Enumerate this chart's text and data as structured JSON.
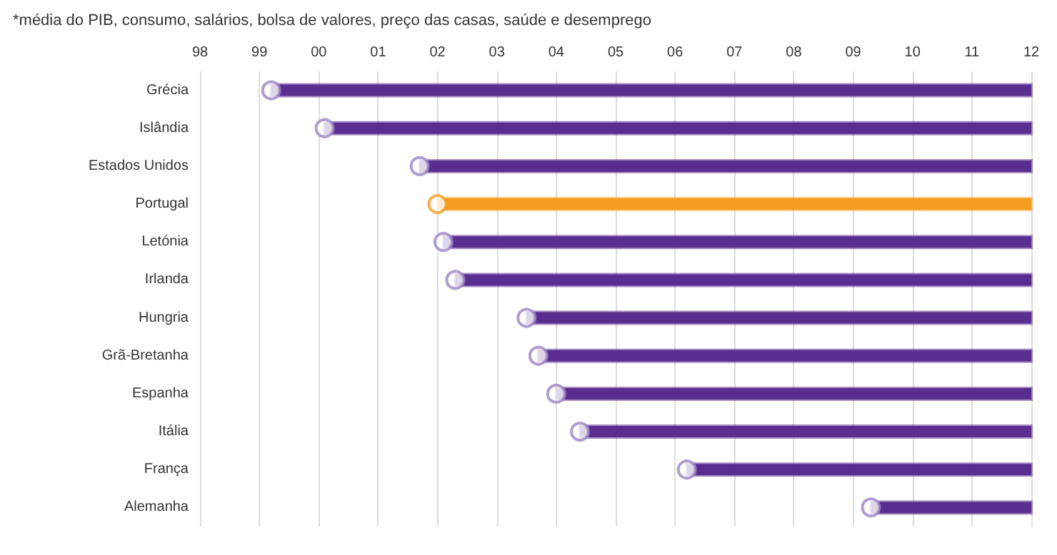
{
  "chart_data": {
    "type": "bar",
    "orientation": "horizontal",
    "subtitle": "*média do PIB, consumo, salários, bolsa de valores, preço das casas, saúde e desemprego",
    "categories": [
      "Grécia",
      "Islândia",
      "Estados Unidos",
      "Portugal",
      "Letónia",
      "Irlanda",
      "Hungria",
      "Grã-Bretanha",
      "Espanha",
      "Itália",
      "França",
      "Alemanha"
    ],
    "series": [
      {
        "base": [
          1999.2,
          2000.1,
          2001.7,
          2002.0,
          2002.1,
          2002.3,
          2003.5,
          2003.7,
          2004.0,
          2004.4,
          2006.2,
          2009.3
        ],
        "values": [
          12.8,
          11.9,
          10.3,
          10.0,
          9.9,
          9.7,
          8.5,
          8.3,
          8.0,
          7.6,
          5.8,
          2.7
        ],
        "colors": [
          "#5b2d91",
          "#5b2d91",
          "#5b2d91",
          "#f39c1f",
          "#5b2d91",
          "#5b2d91",
          "#5b2d91",
          "#5b2d91",
          "#5b2d91",
          "#5b2d91",
          "#5b2d91",
          "#5b2d91"
        ]
      },
      {
        "type": "scatter",
        "values": [
          1999.2,
          2000.1,
          2001.7,
          2002.0,
          2002.1,
          2002.3,
          2003.5,
          2003.7,
          2004.0,
          2004.4,
          2006.2,
          2009.3
        ],
        "color": "#ffffff"
      }
    ],
    "xlim": [
      1998,
      2012
    ],
    "xticks": [
      {
        "value": 1998,
        "label": "98"
      },
      {
        "value": 1999,
        "label": "99"
      },
      {
        "value": 2000,
        "label": "00"
      },
      {
        "value": 2001,
        "label": "01"
      },
      {
        "value": 2002,
        "label": "02"
      },
      {
        "value": 2003,
        "label": "03"
      },
      {
        "value": 2004,
        "label": "04"
      },
      {
        "value": 2005,
        "label": "05"
      },
      {
        "value": 2006,
        "label": "06"
      },
      {
        "value": 2007,
        "label": "07"
      },
      {
        "value": 2008,
        "label": "08"
      },
      {
        "value": 2009,
        "label": "09"
      },
      {
        "value": 2010,
        "label": "10"
      },
      {
        "value": 2011,
        "label": "11"
      },
      {
        "value": 2012,
        "label": "12"
      }
    ],
    "grid": "x",
    "marker": "circle"
  }
}
